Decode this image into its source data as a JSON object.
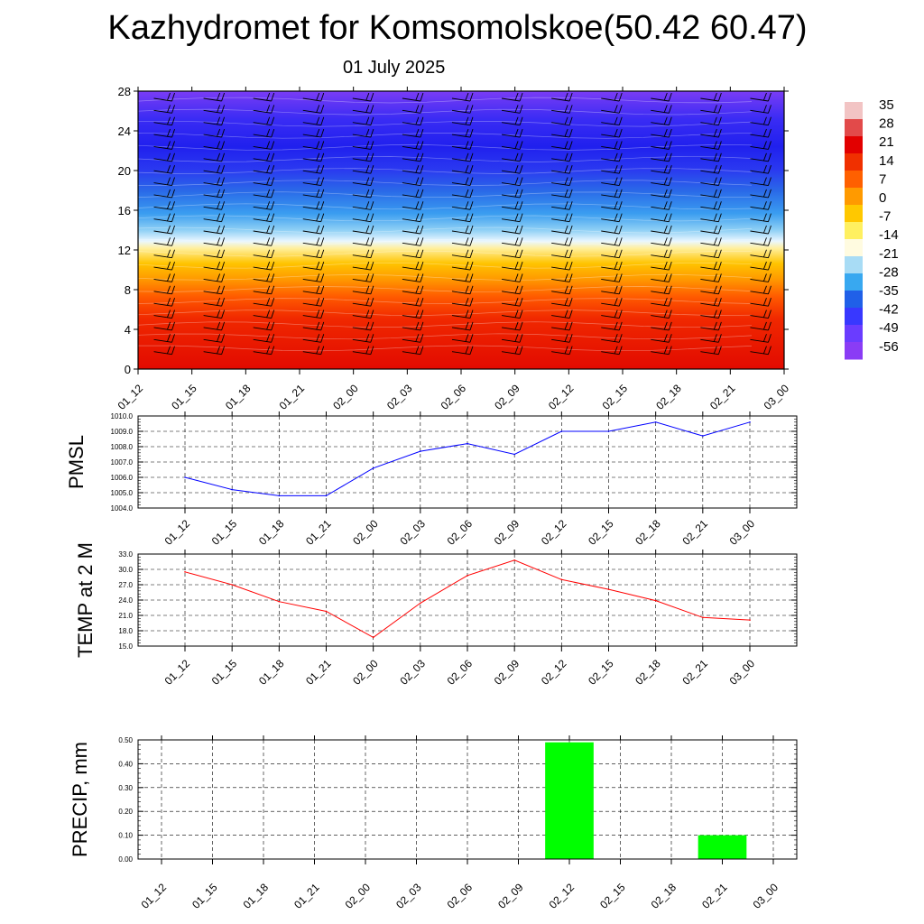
{
  "title": "Kazhydromet for Komsomolskoe(50.42 60.47)",
  "subtitle": "01 July 2025",
  "chart_data": [
    {
      "type": "heatmap",
      "y_ticks": [
        "0",
        "4",
        "8",
        "12",
        "16",
        "20",
        "24",
        "28"
      ],
      "x_ticks": [
        "01_12",
        "01_15",
        "01_18",
        "01_21",
        "02_00",
        "02_03",
        "02_06",
        "02_09",
        "02_12",
        "02_15",
        "02_18",
        "02_21",
        "03_00"
      ],
      "ylim": [
        0,
        28
      ],
      "colorbar_labels": [
        "35",
        "28",
        "21",
        "14",
        "7",
        "0",
        "-7",
        "-14",
        "-21",
        "-28",
        "-35",
        "-42",
        "-49",
        "-56"
      ],
      "colorbar_colors": [
        "#f2c4c4",
        "#e24a4a",
        "#e20000",
        "#f03000",
        "#ff6000",
        "#ff9a00",
        "#ffc800",
        "#fff060",
        "#fffbe0",
        "#a8dcf5",
        "#38a8f0",
        "#2060e8",
        "#3838ff",
        "#6a3cff",
        "#8a3cf5"
      ]
    },
    {
      "type": "line",
      "ylabel": "PMSL",
      "categories": [
        "01_12",
        "01_15",
        "01_18",
        "01_21",
        "02_00",
        "02_03",
        "02_06",
        "02_09",
        "02_12",
        "02_15",
        "02_18",
        "02_21",
        "03_00"
      ],
      "values": [
        1006.0,
        1005.2,
        1004.8,
        1004.8,
        1006.6,
        1007.7,
        1008.2,
        1007.5,
        1009.0,
        1009.0,
        1009.6,
        1008.7,
        1009.6
      ],
      "ylim": [
        1004.0,
        1010.0
      ],
      "y_ticks": [
        "1004.0",
        "1005.0",
        "1006.0",
        "1007.0",
        "1008.0",
        "1009.0",
        "1010.0"
      ],
      "color": "#0000ff",
      "grid": true
    },
    {
      "type": "line",
      "ylabel": "TEMP at 2 M",
      "categories": [
        "01_12",
        "01_15",
        "01_18",
        "01_21",
        "02_00",
        "02_03",
        "02_06",
        "02_09",
        "02_12",
        "02_15",
        "02_18",
        "02_21",
        "03_00"
      ],
      "values": [
        29.5,
        27.0,
        23.7,
        21.8,
        16.7,
        23.4,
        28.8,
        31.8,
        28.0,
        26.1,
        23.9,
        20.6,
        20.1
      ],
      "ylim": [
        15.0,
        33.0
      ],
      "y_ticks": [
        "15.0",
        "18.0",
        "21.0",
        "24.0",
        "27.0",
        "30.0",
        "33.0"
      ],
      "color": "#ff0000",
      "grid": true
    },
    {
      "type": "bar",
      "ylabel": "PRECIP, mm",
      "categories": [
        "01_12",
        "01_15",
        "01_18",
        "01_21",
        "02_00",
        "02_03",
        "02_06",
        "02_09",
        "02_12",
        "02_15",
        "02_18",
        "02_21",
        "03_00"
      ],
      "values": [
        0,
        0,
        0,
        0,
        0,
        0,
        0,
        0,
        0.49,
        0,
        0,
        0.1,
        0
      ],
      "ylim": [
        0,
        0.5
      ],
      "y_ticks": [
        "0.00",
        "0.10",
        "0.20",
        "0.30",
        "0.40",
        "0.50"
      ],
      "color": "#00ff00",
      "grid": true
    }
  ]
}
